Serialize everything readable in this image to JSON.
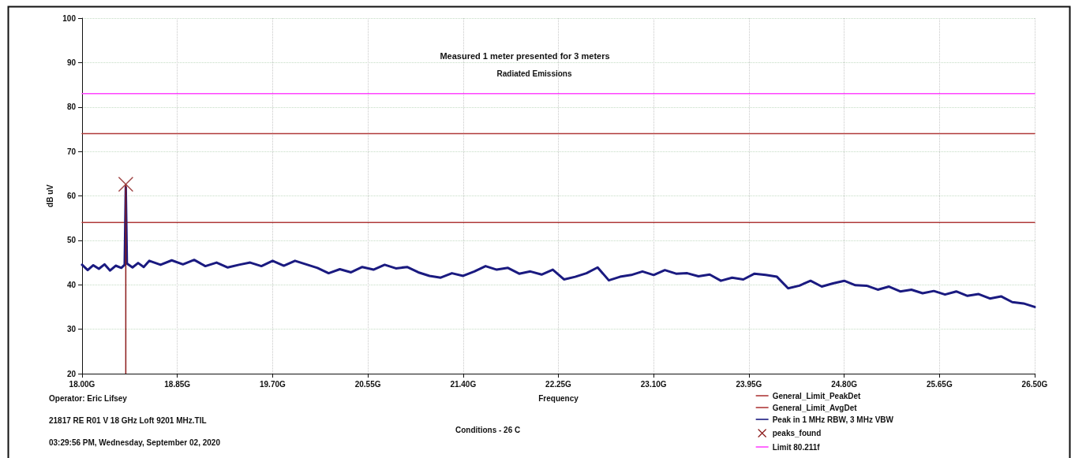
{
  "chart_data": {
    "type": "line",
    "title": "Measured 1 meter presented for 3 meters",
    "subtitle": "Radiated Emissions",
    "xlabel": "Frequency",
    "ylabel": "dB uV",
    "annotations": [
      "Operator: Eric Lifsey",
      "21817 RE R01 V 18 GHz Loft 9201 MHz.TIL",
      "03:29:56 PM, Wednesday, September 02, 2020",
      "Conditions - 26 C"
    ],
    "xlim": [
      18,
      26.5
    ],
    "xticks": [
      {
        "value": 18,
        "label": "18.00G"
      },
      {
        "value": 18.85,
        "label": "18.85G"
      },
      {
        "value": 19.7,
        "label": "19.70G"
      },
      {
        "value": 20.55,
        "label": "20.55G"
      },
      {
        "value": 21.4,
        "label": "21.40G"
      },
      {
        "value": 22.25,
        "label": "22.25G"
      },
      {
        "value": 23.1,
        "label": "23.10G"
      },
      {
        "value": 23.95,
        "label": "23.95G"
      },
      {
        "value": 24.8,
        "label": "24.80G"
      },
      {
        "value": 25.65,
        "label": "25.65G"
      },
      {
        "value": 26.5,
        "label": "26.50G"
      }
    ],
    "ylim": [
      20,
      100
    ],
    "yticks": [
      20,
      30,
      40,
      50,
      60,
      70,
      80,
      90,
      100
    ],
    "grid": true,
    "legend": "bottom right",
    "series": [
      {
        "name": "General_Limit_PeakDet",
        "color": "#b03a3a",
        "marker": "none",
        "x": [
          18,
          26.5
        ],
        "values": [
          74,
          74
        ]
      },
      {
        "name": "General_Limit_AvgDet",
        "color": "#b03a3a",
        "marker": "none",
        "x": [
          18,
          26.5
        ],
        "values": [
          54,
          54
        ]
      },
      {
        "name": "Peak in 1 MHz RBW, 3 MHz VBW",
        "color": "#1a1a80",
        "marker": "none",
        "x": [
          18,
          18.05,
          18.1,
          18.15,
          18.2,
          18.25,
          18.3,
          18.35,
          18.38,
          18.39,
          18.4,
          18.45,
          18.5,
          18.55,
          18.6,
          18.7,
          18.8,
          18.9,
          19.0,
          19.1,
          19.2,
          19.3,
          19.4,
          19.5,
          19.6,
          19.7,
          19.8,
          19.9,
          20.0,
          20.1,
          20.2,
          20.3,
          20.4,
          20.5,
          20.6,
          20.7,
          20.8,
          20.9,
          21.0,
          21.1,
          21.2,
          21.3,
          21.4,
          21.5,
          21.6,
          21.7,
          21.8,
          21.9,
          22.0,
          22.1,
          22.2,
          22.3,
          22.4,
          22.5,
          22.6,
          22.7,
          22.8,
          22.9,
          23.0,
          23.1,
          23.2,
          23.3,
          23.4,
          23.5,
          23.6,
          23.7,
          23.8,
          23.9,
          24.0,
          24.1,
          24.2,
          24.3,
          24.4,
          24.5,
          24.6,
          24.7,
          24.8,
          24.9,
          25.0,
          25.1,
          25.2,
          25.3,
          25.4,
          25.5,
          25.6,
          25.7,
          25.8,
          25.9,
          26.0,
          26.1,
          26.2,
          26.3,
          26.4,
          26.5
        ],
        "values": [
          44.5,
          43.3,
          44.4,
          43.6,
          44.6,
          43.2,
          44.3,
          43.8,
          44.5,
          62,
          44.8,
          43.9,
          44.9,
          44,
          45.4,
          44.5,
          45.5,
          44.6,
          45.6,
          44.2,
          45,
          43.9,
          44.5,
          45,
          44.2,
          45.4,
          44.3,
          45.4,
          44.6,
          43.8,
          42.6,
          43.5,
          42.8,
          44,
          43.4,
          44.5,
          43.7,
          44,
          42.8,
          42,
          41.6,
          42.6,
          42,
          43,
          44.2,
          43.4,
          43.8,
          42.5,
          43,
          42.3,
          43.4,
          41.2,
          41.8,
          42.6,
          43.9,
          41,
          41.8,
          42.2,
          43,
          42.2,
          43.3,
          42.5,
          42.6,
          41.9,
          42.3,
          40.9,
          41.6,
          41.2,
          42.5,
          42.2,
          41.8,
          39.2,
          39.8,
          40.9,
          39.6,
          40.3,
          40.9,
          39.9,
          39.8,
          38.9,
          39.6,
          38.5,
          38.9,
          38.1,
          38.6,
          37.8,
          38.5,
          37.5,
          37.9,
          36.9,
          37.4,
          36.1,
          35.8,
          35
        ]
      },
      {
        "name": "peaks_found",
        "type": "lollipop",
        "color": "#8b1a1a",
        "marker": "cross",
        "x": [
          18.39
        ],
        "values": [
          62.6
        ]
      },
      {
        "name": "Limit 80.211f",
        "color": "#ff44ff",
        "marker": "none",
        "x": [
          18,
          26.5
        ],
        "values": [
          83,
          83
        ]
      }
    ]
  }
}
